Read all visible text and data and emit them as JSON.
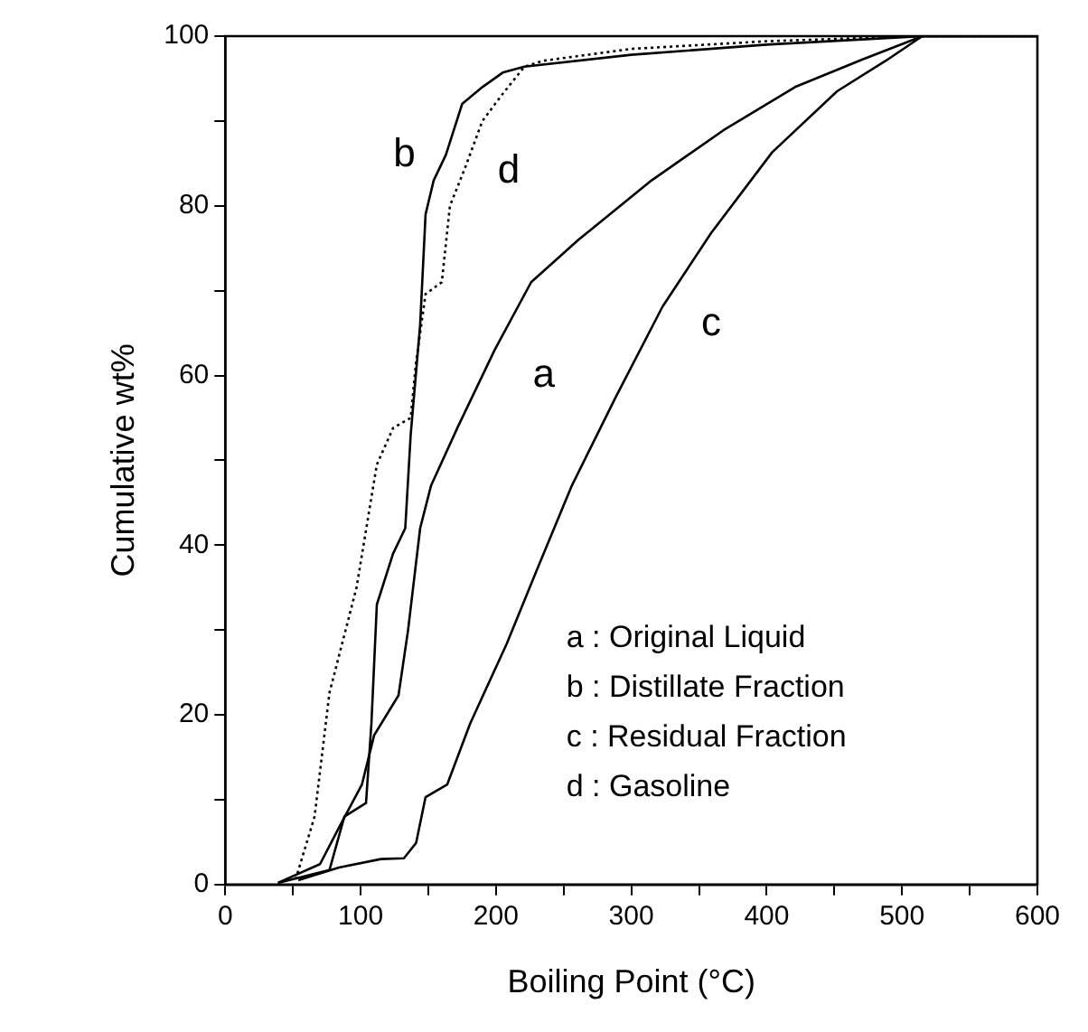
{
  "chart_data": {
    "type": "line",
    "xlabel": "Boiling Point (°C)",
    "ylabel": "Cumulative wt%",
    "xlim": [
      0,
      600
    ],
    "ylim": [
      0,
      100
    ],
    "xticks": [
      0,
      {
        "value": 50,
        "label": null
      },
      100,
      {
        "value": 150,
        "label": null
      },
      200,
      {
        "value": 250,
        "label": null
      },
      300,
      {
        "value": 350,
        "label": null
      },
      400,
      {
        "value": 450,
        "label": null
      },
      500,
      {
        "value": 550,
        "label": null
      },
      600
    ],
    "yticks": [
      0,
      {
        "value": 10,
        "label": null
      },
      20,
      {
        "value": 30,
        "label": null
      },
      40,
      {
        "value": 50,
        "label": null
      },
      60,
      {
        "value": 70,
        "label": null
      },
      80,
      {
        "value": 90,
        "label": null
      },
      100
    ],
    "grid": false,
    "legend": false,
    "marker": "none",
    "series": [
      {
        "name": "a",
        "color": "#000000",
        "line_style": "solid",
        "x": [
          39,
          70,
          84,
          101,
          110,
          128,
          135,
          144,
          152,
          172,
          199,
          226,
          261,
          315,
          368,
          421,
          470,
          515,
          600
        ],
        "values": [
          0.2,
          2.4,
          6.7,
          11.8,
          17.6,
          22.3,
          29.9,
          42,
          47,
          54,
          63,
          71,
          76,
          83,
          88.9,
          94,
          97.2,
          100,
          100
        ]
      },
      {
        "name": "b",
        "color": "#000000",
        "line_style": "solid",
        "x": [
          39,
          77,
          88,
          104,
          108,
          112,
          124,
          133,
          137,
          144,
          148,
          154,
          163,
          175,
          190,
          205,
          221,
          300,
          400,
          515,
          600
        ],
        "values": [
          0.2,
          1.7,
          8,
          9.6,
          19,
          33,
          39,
          42,
          53,
          66,
          79,
          83,
          86,
          92,
          94,
          95.7,
          96.4,
          97.8,
          99,
          100,
          100
        ]
      },
      {
        "name": "c",
        "color": "#000000",
        "line_style": "solid",
        "x": [
          54,
          84,
          115,
          132,
          141,
          148,
          164,
          181,
          208,
          230,
          256,
          288,
          323,
          359,
          404,
          452,
          488,
          515,
          600
        ],
        "values": [
          0.5,
          2,
          3,
          3.1,
          4.9,
          10.3,
          11.8,
          19,
          28.4,
          37,
          47,
          57.3,
          68.1,
          76.8,
          86.3,
          93.5,
          97.1,
          100,
          100
        ]
      },
      {
        "name": "d",
        "color": "#000000",
        "line_style": "dotted",
        "x": [
          52,
          66,
          77,
          97,
          112,
          124,
          137,
          141,
          148,
          160,
          166,
          177,
          190,
          204,
          221,
          235,
          300,
          400,
          510,
          600
        ],
        "values": [
          0.6,
          8,
          22.6,
          35,
          49.5,
          53.8,
          55,
          61.6,
          69.6,
          71,
          80,
          84.4,
          90,
          93,
          96.4,
          97.1,
          98.5,
          99.4,
          100,
          100
        ]
      }
    ],
    "annotations": [
      "a : Original Liquid",
      "b : Distillate Fraction",
      "c : Residual Fraction",
      "d : Gasoline"
    ]
  }
}
